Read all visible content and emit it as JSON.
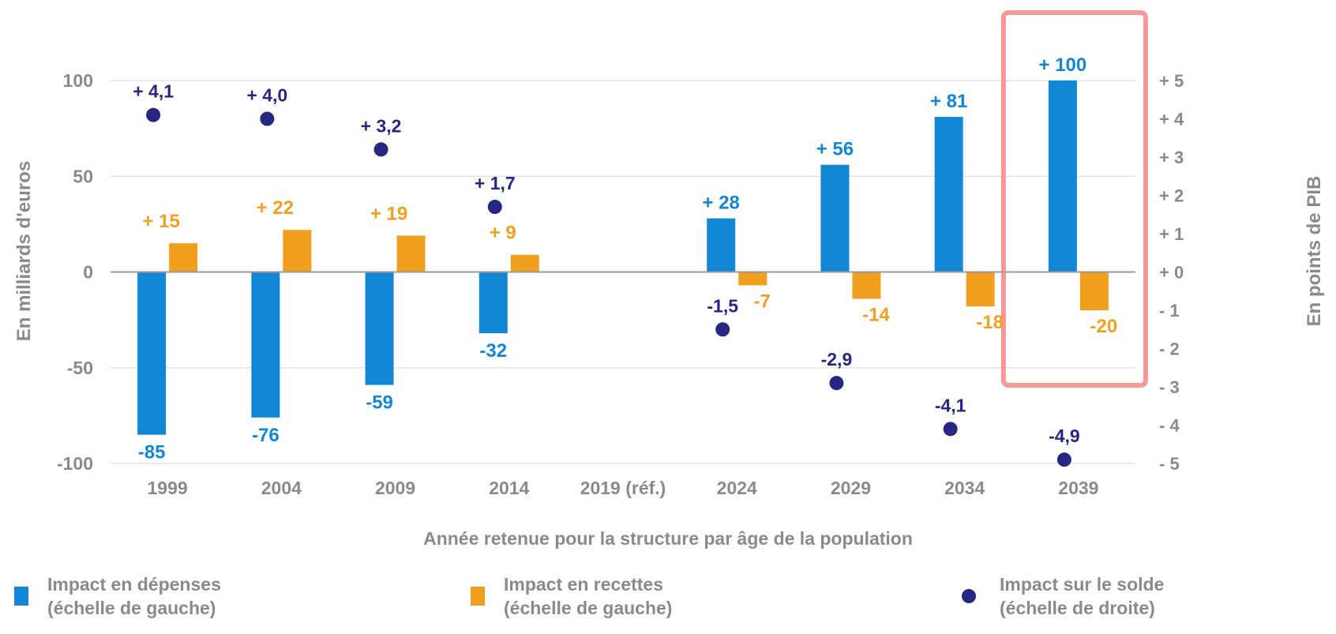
{
  "colors": {
    "spending": "#1187d6",
    "revenue": "#f0a01e",
    "balance": "#252783",
    "title": "#1a7ad1",
    "highlight": "#f49898",
    "axis_text": "#8a8a8a",
    "grid": "#e3e3e3"
  },
  "header": {
    "title": ""
  },
  "chart_data": {
    "type": "bar",
    "title": "",
    "xlabel": "Année retenue pour la structure par âge de la population",
    "ylabel": "En milliards d'euros",
    "y2label": "En points de PIB",
    "ylim": [
      -100,
      100
    ],
    "y2lim": [
      -5,
      5
    ],
    "yticks": [
      "100",
      "50",
      "0",
      "-50",
      "-100"
    ],
    "y2ticks": [
      "+ 5",
      "+ 4",
      "+ 3",
      "+ 2",
      "+ 1",
      "+ 0",
      "- 1",
      "- 2",
      "- 3",
      "- 4",
      "- 5"
    ],
    "categories": [
      "1999",
      "2004",
      "2009",
      "2014",
      "2019 (réf.)",
      "2024",
      "2029",
      "2034",
      "2039"
    ],
    "grid": true,
    "highlighted_category": "2039",
    "series": [
      {
        "name": "Impact en dépenses (échelle de gauche)",
        "kind": "bar",
        "axis": "left",
        "values": [
          -85,
          -76,
          -59,
          -32,
          null,
          28,
          56,
          81,
          100
        ],
        "labels": [
          "-85",
          "-76",
          "-59",
          "-32",
          "",
          "+ 28",
          "+ 56",
          "+ 81",
          "+ 100"
        ]
      },
      {
        "name": "Impact en recettes (échelle de gauche)",
        "kind": "bar",
        "axis": "left",
        "values": [
          15,
          22,
          19,
          9,
          null,
          -7,
          -14,
          -18,
          -20
        ],
        "labels": [
          "+ 15",
          "+ 22",
          "+ 19",
          "+ 9",
          "",
          "-7",
          "-14",
          "-18",
          "-20"
        ]
      },
      {
        "name": "Impact sur le solde (échelle de droite)",
        "kind": "scatter",
        "axis": "right",
        "values": [
          4.1,
          4.0,
          3.2,
          1.7,
          null,
          -1.5,
          -2.9,
          -4.1,
          -4.9
        ],
        "labels": [
          "+ 4,1",
          "+ 4,0",
          "+ 3,2",
          "+ 1,7",
          "",
          "-1,5",
          "-2,9",
          "-4,1",
          "-4,9"
        ]
      }
    ]
  },
  "legend": {
    "items": [
      {
        "line1": "Impact en dépenses",
        "line2": "(échelle de gauche)"
      },
      {
        "line1": "Impact en recettes",
        "line2": "(échelle de gauche)"
      },
      {
        "line1": "Impact sur le solde",
        "line2": "(échelle de droite)"
      }
    ]
  }
}
